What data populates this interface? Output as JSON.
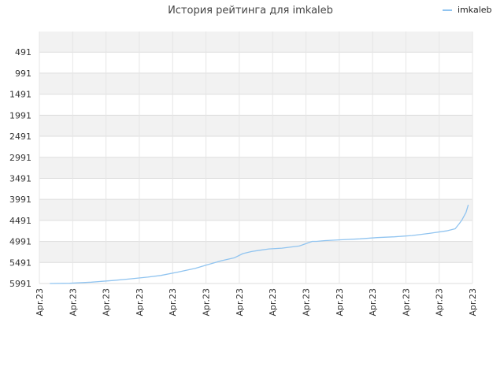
{
  "chart_data": {
    "type": "line",
    "title": "История рейтинга для imkaleb",
    "xlabel": "",
    "ylabel": "",
    "y_inverted": true,
    "ylim": [
      5991,
      0
    ],
    "y_ticks": [
      491,
      991,
      1491,
      1991,
      2491,
      2991,
      3491,
      3991,
      4491,
      4991,
      5491,
      5991
    ],
    "x_tick_labels": [
      "Apr.23",
      "Apr.23",
      "Apr.23",
      "Apr.23",
      "Apr.23",
      "Apr.23",
      "Apr.23",
      "Apr.23",
      "Apr.23",
      "Apr.23",
      "Apr.23",
      "Apr.23",
      "Apr.23",
      "Apr.23"
    ],
    "grid": true,
    "legend": {
      "position": "top-right"
    },
    "series": [
      {
        "name": "imkaleb",
        "color": "#90c4f0",
        "x": [
          0.025,
          0.07,
          0.12,
          0.17,
          0.21,
          0.25,
          0.28,
          0.32,
          0.36,
          0.39,
          0.42,
          0.45,
          0.47,
          0.49,
          0.51,
          0.53,
          0.56,
          0.6,
          0.63,
          0.64,
          0.66,
          0.7,
          0.74,
          0.78,
          0.82,
          0.86,
          0.9,
          0.94,
          0.96,
          0.97,
          0.975,
          0.985,
          0.99
        ],
        "y": [
          5991,
          5985,
          5960,
          5920,
          5880,
          5840,
          5800,
          5720,
          5630,
          5540,
          5450,
          5380,
          5280,
          5230,
          5200,
          5170,
          5150,
          5100,
          4990,
          4990,
          4970,
          4950,
          4930,
          4900,
          4880,
          4850,
          4800,
          4740,
          4690,
          4560,
          4490,
          4300,
          4130
        ]
      }
    ]
  }
}
